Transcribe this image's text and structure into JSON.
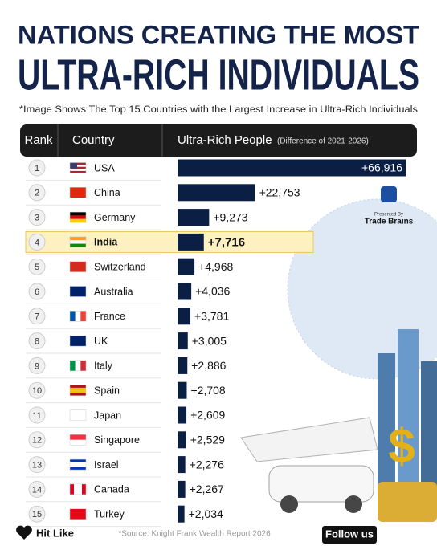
{
  "chart_data": {
    "type": "bar",
    "title": [
      "NATIONS CREATING THE MOST",
      "ULTRA-RICH INDIVIDUALS"
    ],
    "note": "*Image Shows The Top 15 Countries with the Largest Increase in Ultra-Rich Individuals",
    "column_headers": [
      "Rank",
      "Country",
      "Ultra-Rich People"
    ],
    "column_header_note": "(Difference of 2021-2026)",
    "ranks": [
      1,
      2,
      3,
      4,
      5,
      6,
      7,
      8,
      9,
      10,
      11,
      12,
      13,
      14,
      15
    ],
    "categories": [
      "USA",
      "China",
      "Germany",
      "India",
      "Switzerland",
      "Australia",
      "France",
      "UK",
      "Italy",
      "Spain",
      "Japan",
      "Singapore",
      "Israel",
      "Canada",
      "Turkey"
    ],
    "values": [
      66916,
      22753,
      9273,
      7716,
      4968,
      4036,
      3781,
      3005,
      2886,
      2708,
      2609,
      2529,
      2276,
      2267,
      2034
    ],
    "value_labels": [
      "+66,916",
      "+22,753",
      "+9,273",
      "+7,716",
      "+4,968",
      "+4,036",
      "+3,781",
      "+3,005",
      "+2,886",
      "+2,708",
      "+2,609",
      "+2,529",
      "+2,276",
      "+2,267",
      "+2,034"
    ],
    "color": "#0b1f45",
    "highlight": "India",
    "highlight_color": "#fdf1c2"
  },
  "presenter": {
    "label": "Presented By",
    "name": "Trade Brains"
  },
  "footer": {
    "like": "Hit Like",
    "source": "*Source: Knight Frank Wealth Report 2026",
    "follow": "Follow us"
  }
}
